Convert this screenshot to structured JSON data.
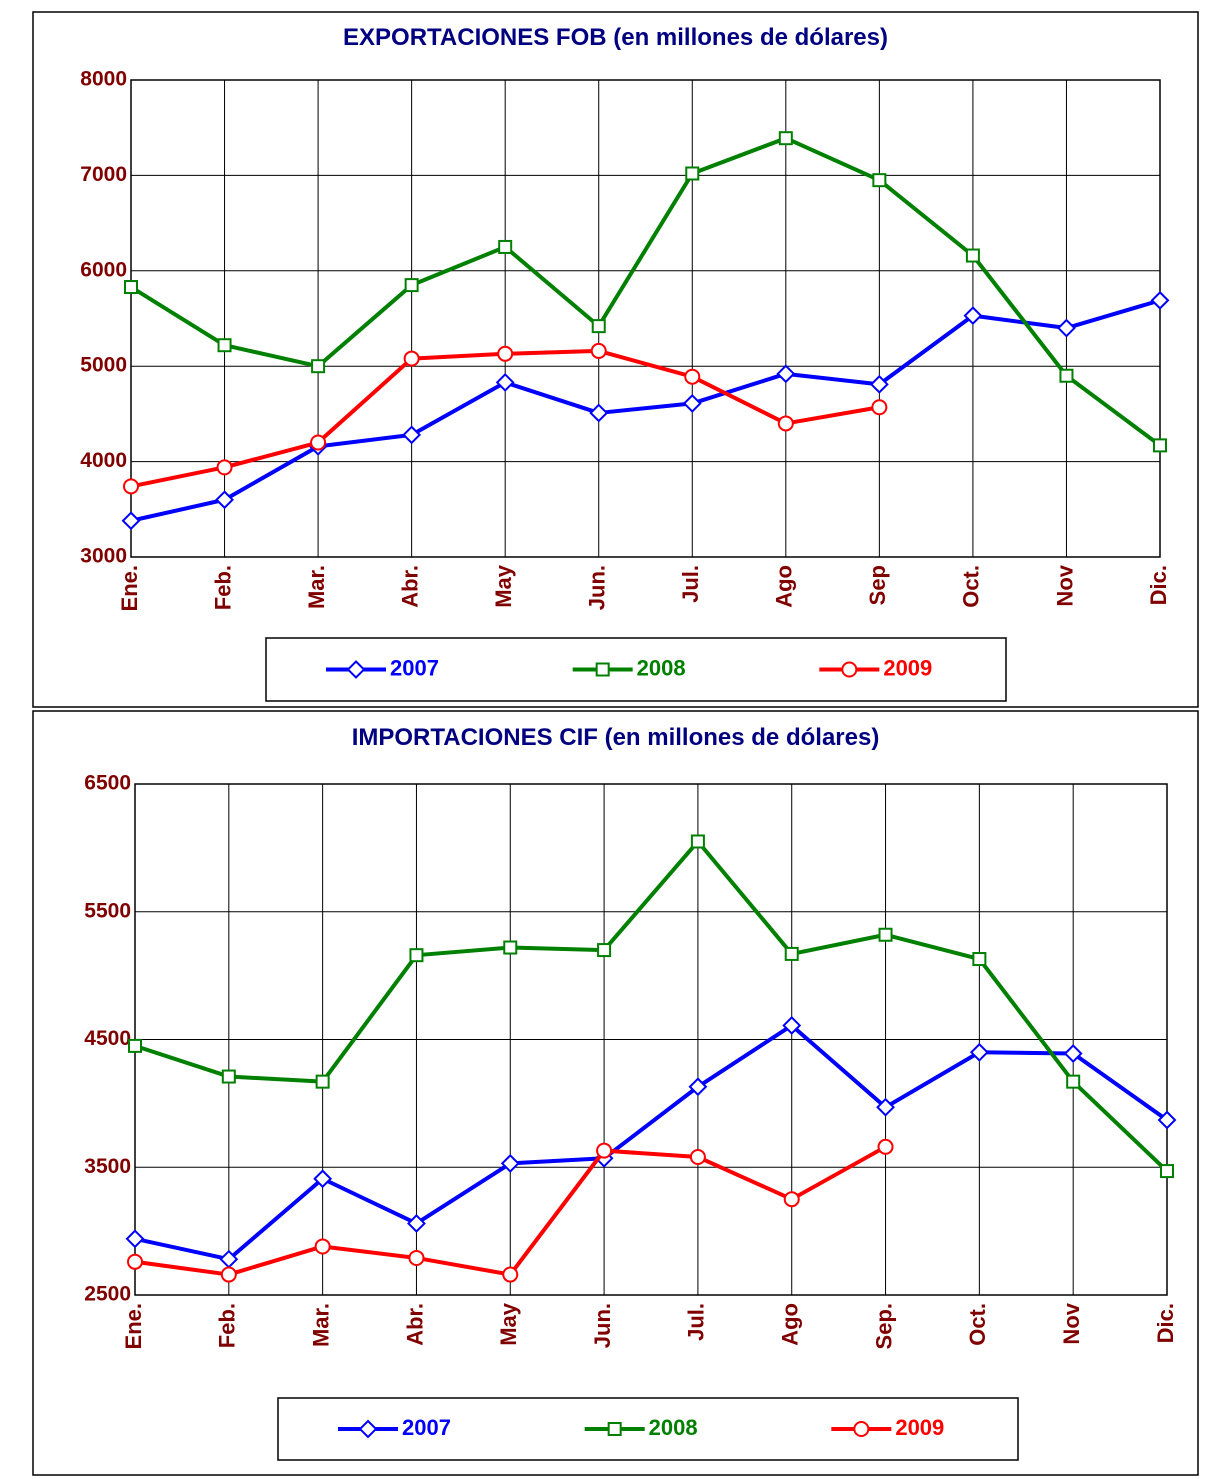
{
  "chart_data": [
    {
      "type": "line",
      "title": "EXPORTACIONES FOB (en millones de dólares)",
      "categories": [
        "Ene.",
        "Feb.",
        "Mar.",
        "Abr.",
        "May",
        "Jun.",
        "Jul.",
        "Ago",
        "Sep",
        "Oct.",
        "Nov",
        "Dic."
      ],
      "ylim": [
        3000,
        8000
      ],
      "yticks": [
        3000,
        4000,
        5000,
        6000,
        7000,
        8000
      ],
      "grid": true,
      "legend": "bottom",
      "series": [
        {
          "name": "2007",
          "color": "#0000ff",
          "marker": "diamond",
          "values": [
            3380,
            3600,
            4160,
            4280,
            4830,
            4510,
            4610,
            4920,
            4810,
            5530,
            5400,
            5690
          ]
        },
        {
          "name": "2008",
          "color": "#008000",
          "marker": "square",
          "values": [
            5830,
            5220,
            5000,
            5850,
            6250,
            5420,
            7020,
            7390,
            6950,
            6160,
            4900,
            4170
          ]
        },
        {
          "name": "2009",
          "color": "#ff0000",
          "marker": "circle",
          "values": [
            3740,
            3940,
            4200,
            5080,
            5130,
            5160,
            4890,
            4400,
            4570,
            null,
            null,
            null
          ]
        }
      ]
    },
    {
      "type": "line",
      "title": "IMPORTACIONES CIF (en millones de dólares)",
      "categories": [
        "Ene.",
        "Feb.",
        "Mar.",
        "Abr.",
        "May",
        "Jun.",
        "Jul.",
        "Ago",
        "Sep.",
        "Oct.",
        "Nov",
        "Dic."
      ],
      "ylim": [
        2500,
        6500
      ],
      "yticks": [
        2500,
        3500,
        4500,
        5500,
        6500
      ],
      "grid": true,
      "legend": "bottom",
      "series": [
        {
          "name": "2007",
          "color": "#0000ff",
          "marker": "diamond",
          "values": [
            2940,
            2780,
            3410,
            3060,
            3530,
            3570,
            4130,
            4610,
            3970,
            4400,
            4390,
            3870
          ]
        },
        {
          "name": "2008",
          "color": "#008000",
          "marker": "square",
          "values": [
            4450,
            4210,
            4170,
            5160,
            5220,
            5200,
            6050,
            5170,
            5320,
            5130,
            4170,
            3470
          ]
        },
        {
          "name": "2009",
          "color": "#ff0000",
          "marker": "circle",
          "values": [
            2760,
            2660,
            2880,
            2790,
            2660,
            3630,
            3580,
            3250,
            3660,
            null,
            null,
            null
          ]
        }
      ]
    }
  ]
}
